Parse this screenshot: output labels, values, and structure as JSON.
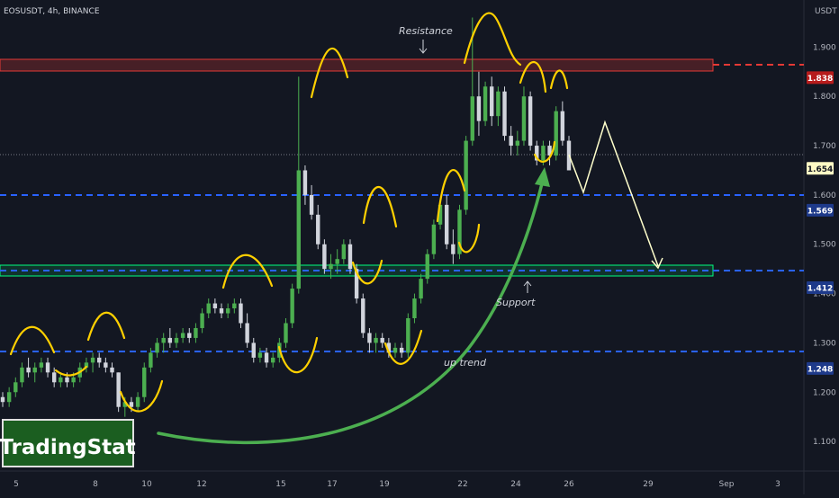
{
  "header": {
    "symbol_line": "EOSUSDT, 4h, BINANCE",
    "currency": "USDT"
  },
  "watermark": {
    "text": "TradingStat"
  },
  "annotations": {
    "resistance": "Resistance",
    "support": "Support",
    "up_trend": "up trend"
  },
  "colors": {
    "background": "#131722",
    "bull": "#4caf50",
    "bear": "#d1d4dc",
    "resistance": "#e53935",
    "support_box": "#00ff7f",
    "blue_level": "#2962ff",
    "arc": "#ffd000",
    "trend": "#4caf50",
    "projection": "#ffffcc"
  },
  "chart_data": {
    "type": "candlestick",
    "y_axis": {
      "min": 1.04,
      "max": 1.97,
      "ticks": [
        "1.100",
        "1.200",
        "1.300",
        "1.400",
        "1.500",
        "1.600",
        "1.700",
        "1.800",
        "1.900"
      ]
    },
    "x_axis": {
      "ticks": [
        "5",
        "8",
        "10",
        "12",
        "15",
        "17",
        "19",
        "22",
        "24",
        "26",
        "29",
        "Sep",
        "3"
      ]
    },
    "price_labels": [
      {
        "value": "1.838",
        "style": "resistance"
      },
      {
        "value": "1.654",
        "style": "current"
      },
      {
        "value": "1.569",
        "style": "level"
      },
      {
        "value": "1.412",
        "style": "level"
      },
      {
        "value": "1.248",
        "style": "level"
      }
    ],
    "levels": [
      {
        "name": "resistance-zone",
        "low": 1.825,
        "high": 1.852
      },
      {
        "name": "support-zone",
        "low": 1.4,
        "high": 1.424
      },
      {
        "name": "blue-level-1",
        "value": 1.569
      },
      {
        "name": "blue-level-2",
        "value": 1.412
      },
      {
        "name": "blue-level-3",
        "value": 1.248
      },
      {
        "name": "current-price",
        "value": 1.654
      }
    ],
    "candles": [
      [
        1.19,
        1.2,
        1.17,
        1.18
      ],
      [
        1.18,
        1.21,
        1.17,
        1.2
      ],
      [
        1.2,
        1.23,
        1.19,
        1.22
      ],
      [
        1.22,
        1.26,
        1.21,
        1.25
      ],
      [
        1.25,
        1.27,
        1.23,
        1.24
      ],
      [
        1.24,
        1.26,
        1.22,
        1.25
      ],
      [
        1.25,
        1.27,
        1.24,
        1.26
      ],
      [
        1.26,
        1.27,
        1.23,
        1.24
      ],
      [
        1.24,
        1.25,
        1.21,
        1.22
      ],
      [
        1.22,
        1.24,
        1.21,
        1.23
      ],
      [
        1.23,
        1.24,
        1.21,
        1.22
      ],
      [
        1.22,
        1.24,
        1.21,
        1.23
      ],
      [
        1.23,
        1.26,
        1.22,
        1.25
      ],
      [
        1.25,
        1.27,
        1.24,
        1.26
      ],
      [
        1.26,
        1.28,
        1.24,
        1.27
      ],
      [
        1.27,
        1.28,
        1.25,
        1.26
      ],
      [
        1.26,
        1.27,
        1.24,
        1.25
      ],
      [
        1.25,
        1.26,
        1.23,
        1.24
      ],
      [
        1.24,
        1.24,
        1.16,
        1.17
      ],
      [
        1.17,
        1.19,
        1.15,
        1.18
      ],
      [
        1.18,
        1.19,
        1.16,
        1.17
      ],
      [
        1.17,
        1.2,
        1.16,
        1.19
      ],
      [
        1.19,
        1.26,
        1.18,
        1.25
      ],
      [
        1.25,
        1.29,
        1.24,
        1.28
      ],
      [
        1.28,
        1.31,
        1.27,
        1.3
      ],
      [
        1.3,
        1.32,
        1.28,
        1.31
      ],
      [
        1.31,
        1.33,
        1.29,
        1.3
      ],
      [
        1.3,
        1.32,
        1.29,
        1.31
      ],
      [
        1.31,
        1.33,
        1.3,
        1.32
      ],
      [
        1.32,
        1.33,
        1.3,
        1.31
      ],
      [
        1.31,
        1.34,
        1.3,
        1.33
      ],
      [
        1.33,
        1.37,
        1.32,
        1.36
      ],
      [
        1.36,
        1.39,
        1.35,
        1.38
      ],
      [
        1.38,
        1.39,
        1.36,
        1.37
      ],
      [
        1.37,
        1.38,
        1.35,
        1.36
      ],
      [
        1.36,
        1.38,
        1.35,
        1.37
      ],
      [
        1.37,
        1.39,
        1.36,
        1.38
      ],
      [
        1.38,
        1.39,
        1.33,
        1.34
      ],
      [
        1.34,
        1.36,
        1.29,
        1.3
      ],
      [
        1.3,
        1.31,
        1.26,
        1.27
      ],
      [
        1.27,
        1.29,
        1.26,
        1.28
      ],
      [
        1.28,
        1.29,
        1.25,
        1.26
      ],
      [
        1.26,
        1.28,
        1.25,
        1.27
      ],
      [
        1.27,
        1.31,
        1.26,
        1.3
      ],
      [
        1.3,
        1.35,
        1.29,
        1.34
      ],
      [
        1.34,
        1.42,
        1.33,
        1.41
      ],
      [
        1.41,
        1.84,
        1.4,
        1.65
      ],
      [
        1.65,
        1.66,
        1.58,
        1.6
      ],
      [
        1.6,
        1.62,
        1.55,
        1.56
      ],
      [
        1.56,
        1.58,
        1.49,
        1.5
      ],
      [
        1.5,
        1.51,
        1.44,
        1.45
      ],
      [
        1.45,
        1.48,
        1.43,
        1.46
      ],
      [
        1.46,
        1.49,
        1.44,
        1.47
      ],
      [
        1.47,
        1.51,
        1.46,
        1.5
      ],
      [
        1.5,
        1.51,
        1.44,
        1.45
      ],
      [
        1.45,
        1.46,
        1.38,
        1.39
      ],
      [
        1.39,
        1.4,
        1.31,
        1.32
      ],
      [
        1.32,
        1.33,
        1.28,
        1.3
      ],
      [
        1.3,
        1.32,
        1.28,
        1.31
      ],
      [
        1.31,
        1.32,
        1.29,
        1.3
      ],
      [
        1.3,
        1.31,
        1.27,
        1.28
      ],
      [
        1.28,
        1.3,
        1.27,
        1.29
      ],
      [
        1.29,
        1.3,
        1.27,
        1.28
      ],
      [
        1.28,
        1.36,
        1.27,
        1.35
      ],
      [
        1.35,
        1.4,
        1.34,
        1.39
      ],
      [
        1.39,
        1.44,
        1.38,
        1.43
      ],
      [
        1.43,
        1.49,
        1.42,
        1.48
      ],
      [
        1.48,
        1.55,
        1.47,
        1.54
      ],
      [
        1.54,
        1.59,
        1.53,
        1.58
      ],
      [
        1.58,
        1.6,
        1.49,
        1.5
      ],
      [
        1.5,
        1.53,
        1.46,
        1.48
      ],
      [
        1.48,
        1.58,
        1.47,
        1.57
      ],
      [
        1.57,
        1.72,
        1.56,
        1.71
      ],
      [
        1.71,
        1.96,
        1.7,
        1.8
      ],
      [
        1.8,
        1.85,
        1.72,
        1.75
      ],
      [
        1.75,
        1.83,
        1.74,
        1.82
      ],
      [
        1.82,
        1.84,
        1.74,
        1.76
      ],
      [
        1.76,
        1.82,
        1.74,
        1.81
      ],
      [
        1.81,
        1.82,
        1.71,
        1.72
      ],
      [
        1.72,
        1.74,
        1.68,
        1.7
      ],
      [
        1.7,
        1.73,
        1.68,
        1.71
      ],
      [
        1.71,
        1.82,
        1.7,
        1.8
      ],
      [
        1.8,
        1.81,
        1.69,
        1.7
      ],
      [
        1.7,
        1.71,
        1.66,
        1.67
      ],
      [
        1.67,
        1.71,
        1.66,
        1.7
      ],
      [
        1.7,
        1.71,
        1.66,
        1.68
      ],
      [
        1.68,
        1.78,
        1.67,
        1.77
      ],
      [
        1.77,
        1.79,
        1.7,
        1.71
      ],
      [
        1.71,
        1.72,
        1.65,
        1.65
      ]
    ]
  }
}
